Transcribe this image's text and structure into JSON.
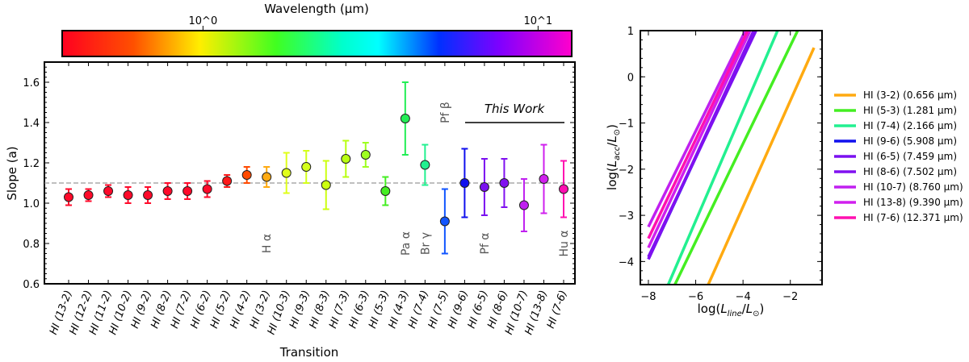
{
  "chart_data": [
    {
      "type": "scatter",
      "xlabel": "Transition",
      "ylabel": "Slope (a)",
      "ylim": [
        0.6,
        1.7
      ],
      "yticks": [
        "0.6",
        "0.8",
        "1.0",
        "1.2",
        "1.4",
        "1.6"
      ],
      "reference_line": 1.1,
      "categories": [
        "HI (13-2)",
        "HI (12-2)",
        "HI (11-2)",
        "HI (10-2)",
        "HI (9-2)",
        "HI (8-2)",
        "HI (7-2)",
        "HI (6-2)",
        "HI (5-2)",
        "HI (4-2)",
        "HI (3-2)",
        "HI (10-3)",
        "HI (9-3)",
        "HI (8-3)",
        "HI (7-3)",
        "HI (6-3)",
        "HI (5-3)",
        "HI (4-3)",
        "HI (7-4)",
        "HI (7-5)",
        "HI (9-6)",
        "HI (6-5)",
        "HI (8-6)",
        "HI (10-7)",
        "HI (13-8)",
        "HI (7-6)"
      ],
      "values": [
        1.03,
        1.04,
        1.06,
        1.04,
        1.04,
        1.06,
        1.06,
        1.07,
        1.11,
        1.14,
        1.13,
        1.15,
        1.18,
        1.09,
        1.22,
        1.24,
        1.06,
        1.42,
        1.19,
        0.91,
        1.1,
        1.08,
        1.1,
        0.99,
        1.12,
        1.07
      ],
      "errors": [
        0.04,
        0.03,
        0.03,
        0.04,
        0.04,
        0.04,
        0.04,
        0.04,
        0.03,
        0.04,
        0.05,
        0.1,
        0.08,
        0.12,
        0.09,
        0.06,
        0.07,
        0.18,
        0.1,
        0.16,
        0.17,
        0.14,
        0.12,
        0.13,
        0.17,
        0.14
      ],
      "colors": [
        "#ff0a2a",
        "#ff0a2a",
        "#ff0a2a",
        "#ff0a2a",
        "#ff0a2a",
        "#ff0a2a",
        "#ff0a2a",
        "#ff0a2a",
        "#ff1a1a",
        "#ff4a00",
        "#ffaa10",
        "#e0ff1a",
        "#d4ff1a",
        "#ccff10",
        "#b8ff10",
        "#9eff20",
        "#44ee22",
        "#22ee55",
        "#22f090",
        "#1155ff",
        "#1010ee",
        "#7a10f0",
        "#8010f0",
        "#c020f0",
        "#d020ee",
        "#ff10b0"
      ],
      "annotations": [
        {
          "text": "H α",
          "category": "HI (3-2)",
          "y": 0.8
        },
        {
          "text": "Pa α",
          "category": "HI (4-3)",
          "y": 0.8
        },
        {
          "text": "Br γ",
          "category": "HI (7-4)",
          "y": 0.8
        },
        {
          "text": "Pf β",
          "category": "HI (7-5)",
          "y": 1.45
        },
        {
          "text": "Pf α",
          "category": "HI (6-5)",
          "y": 0.8
        },
        {
          "text": "Hu α",
          "category": "HI (7-6)",
          "y": 0.8
        }
      ],
      "group_label": "This Work",
      "colorbar": {
        "label": "Wavelength (µm)",
        "scale": "log",
        "range": [
          0.38,
          12.6
        ],
        "ticks": [
          {
            "value": 1,
            "label": "10^0"
          },
          {
            "value": 10,
            "label": "10^1"
          }
        ]
      }
    },
    {
      "type": "line",
      "xlabel": "log(L_line/L_⊙)",
      "ylabel": "log(L_acc/L_⊙)",
      "xlim": [
        -8.34,
        -0.66
      ],
      "ylim": [
        -4.5,
        1
      ],
      "xticks": [
        -8,
        -6,
        -4,
        -2
      ],
      "yticks": [
        1,
        0,
        -1,
        -2,
        -3,
        -4
      ],
      "legend_position": "right",
      "series": [
        {
          "name": "HI (3-2) (0.656 µm)",
          "color": "#ffaa10",
          "x": [
            -5.47,
            -1.0
          ],
          "y": [
            -4.5,
            0.63
          ]
        },
        {
          "name": "HI (5-3) (1.281 µm)",
          "color": "#44ee22",
          "x": [
            -6.88,
            -1.69
          ],
          "y": [
            -4.5,
            1
          ]
        },
        {
          "name": "HI (7-4) (2.166 µm)",
          "color": "#22f090",
          "x": [
            -7.16,
            -2.54
          ],
          "y": [
            -4.5,
            1
          ]
        },
        {
          "name": "HI (9-6) (5.908 µm)",
          "color": "#1010ee",
          "x": [
            -8,
            -3.5
          ],
          "y": [
            -3.95,
            1
          ]
        },
        {
          "name": "HI (6-5) (7.459 µm)",
          "color": "#7a10f0",
          "x": [
            -8,
            -3.45
          ],
          "y": [
            -3.9,
            1
          ]
        },
        {
          "name": "HI (8-6) (7.502 µm)",
          "color": "#8010f0",
          "x": [
            -8,
            -3.55
          ],
          "y": [
            -3.95,
            1
          ]
        },
        {
          "name": "HI (10-7) (8.760 µm)",
          "color": "#c020f0",
          "x": [
            -8,
            -3.9
          ],
          "y": [
            -3.25,
            1
          ]
        },
        {
          "name": "HI (13-8) (9.390 µm)",
          "color": "#d020ee",
          "x": [
            -8,
            -3.7
          ],
          "y": [
            -3.7,
            1
          ]
        },
        {
          "name": "HI (7-6) (12.371 µm)",
          "color": "#ff10b0",
          "x": [
            -8,
            -3.8
          ],
          "y": [
            -3.5,
            1
          ]
        }
      ]
    }
  ]
}
